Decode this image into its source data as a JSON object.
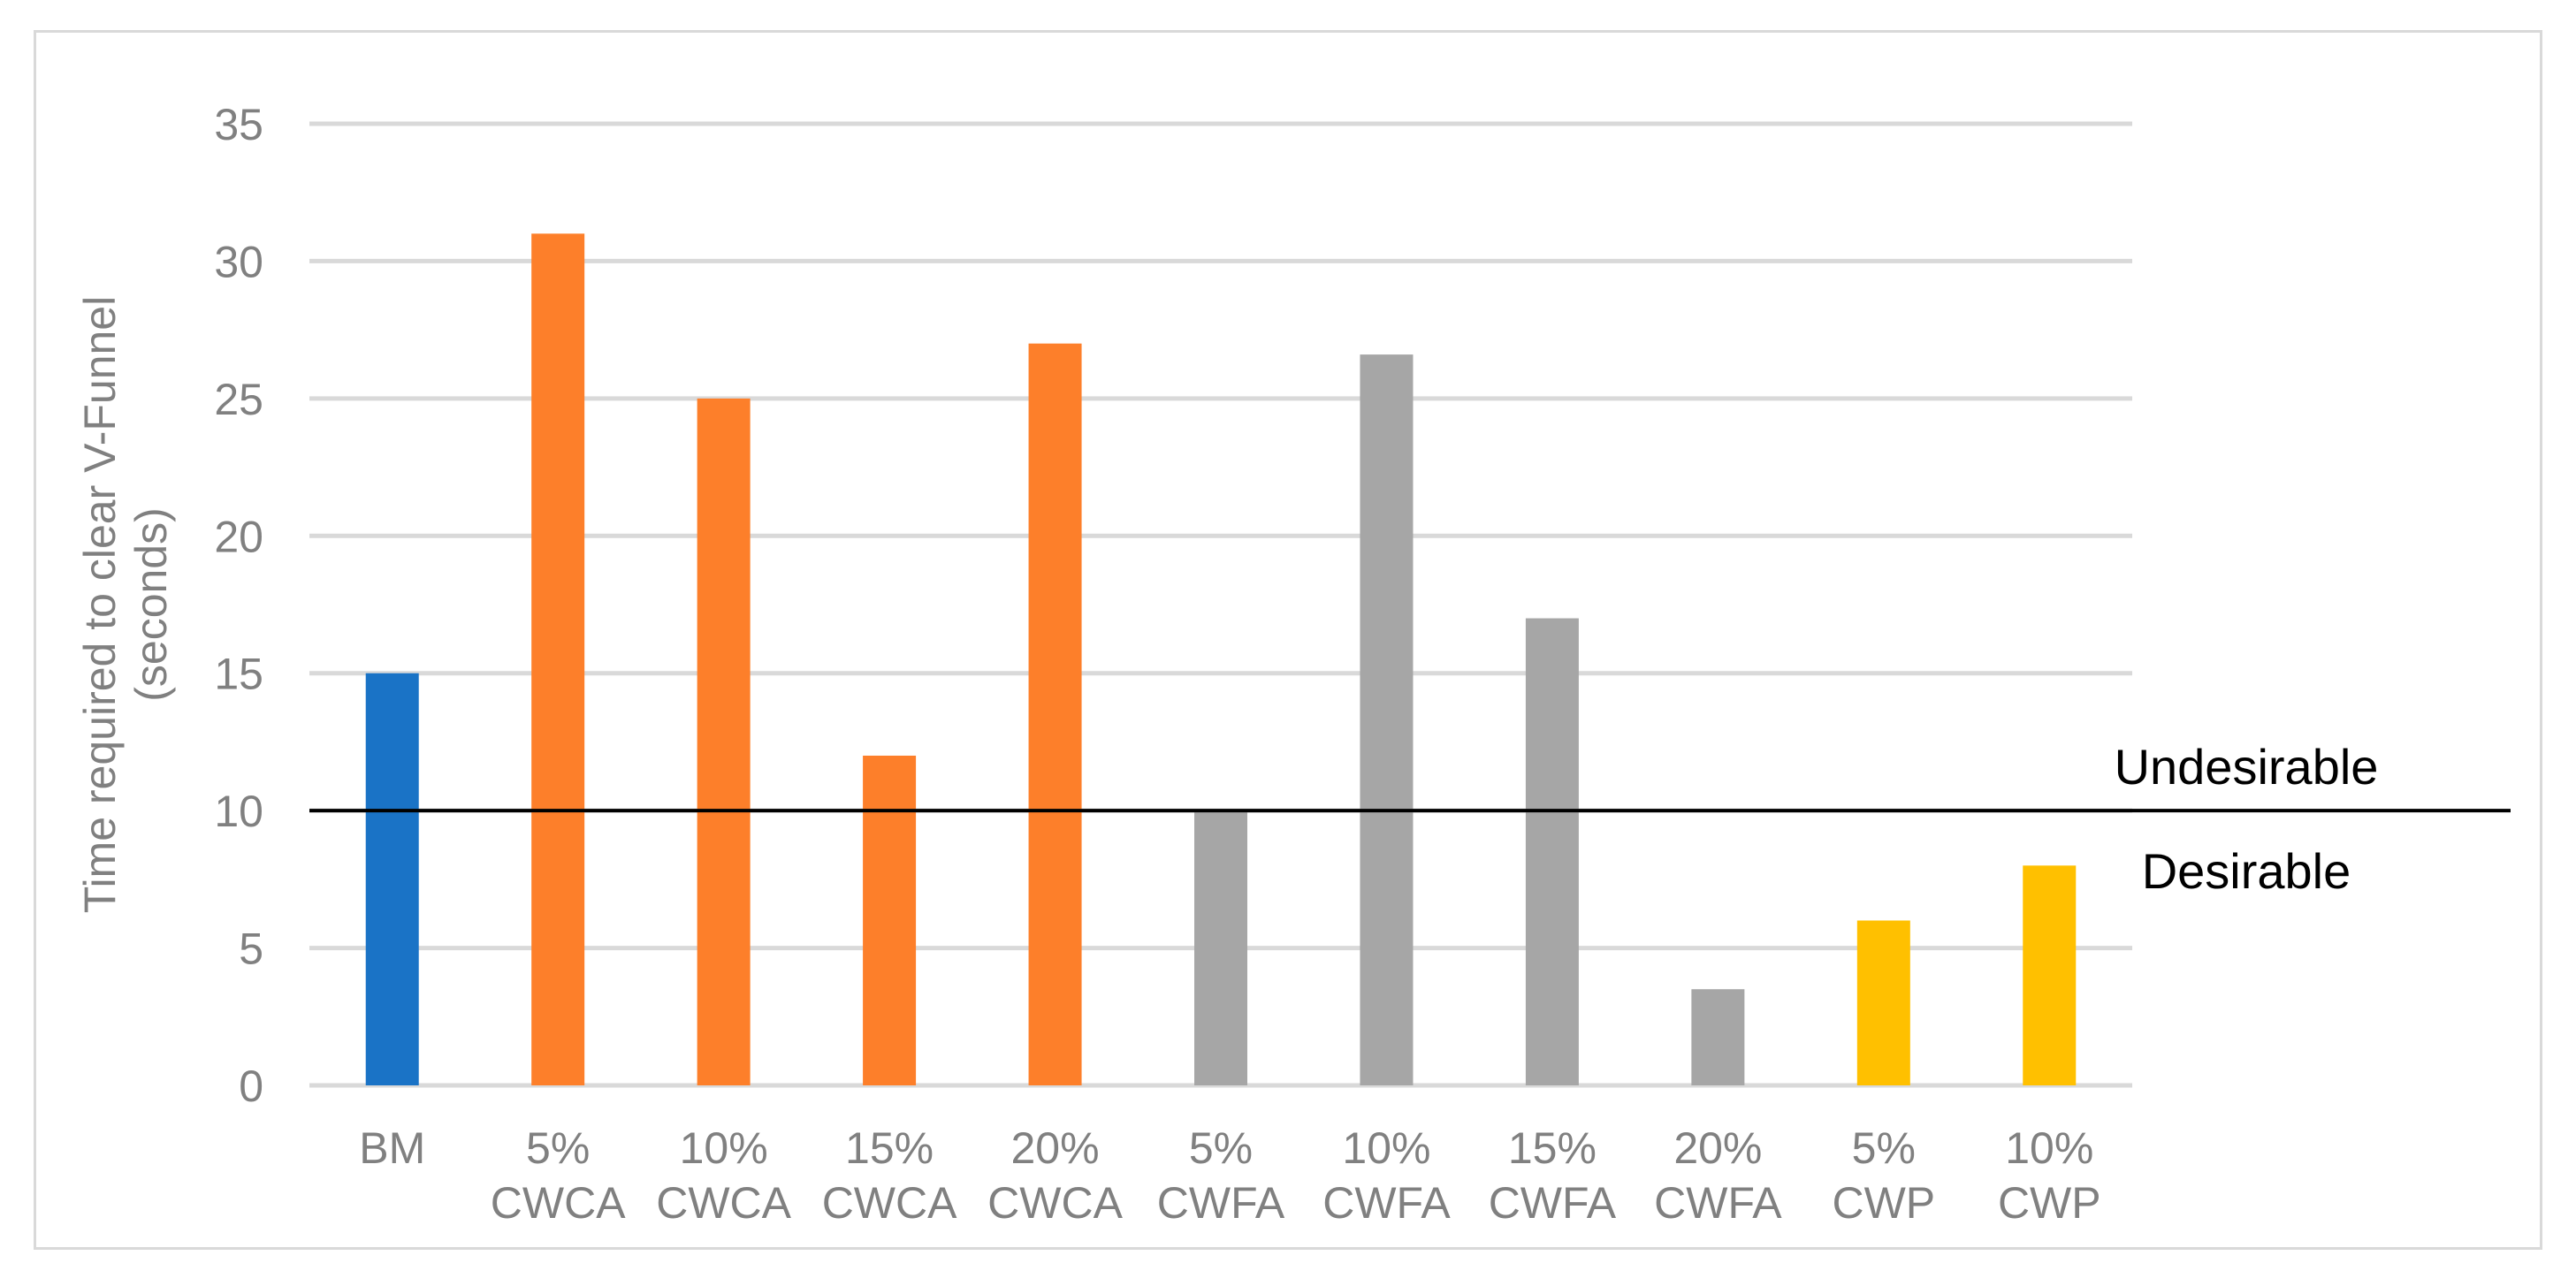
{
  "chart_data": {
    "type": "bar",
    "categories": [
      [
        "BM"
      ],
      [
        "5%",
        "CWCA"
      ],
      [
        "10%",
        "CWCA"
      ],
      [
        "15%",
        "CWCA"
      ],
      [
        "20%",
        "CWCA"
      ],
      [
        "5%",
        "CWFA"
      ],
      [
        "10%",
        "CWFA"
      ],
      [
        "15%",
        "CWFA"
      ],
      [
        "20%",
        "CWFA"
      ],
      [
        "5%",
        "CWP"
      ],
      [
        "10%",
        "CWP"
      ]
    ],
    "values": [
      15,
      31,
      25,
      12,
      27,
      10,
      26.6,
      17,
      3.5,
      6,
      8
    ],
    "bar_colors": [
      "#1a73c6",
      "#fd7f2a",
      "#fd7f2a",
      "#fd7f2a",
      "#fd7f2a",
      "#a6a6a6",
      "#a6a6a6",
      "#a6a6a6",
      "#a6a6a6",
      "#ffc000",
      "#ffc000"
    ],
    "ylabel_lines": [
      "Time required to clear V-Funnel",
      "(seconds)"
    ],
    "ylim": [
      0,
      35
    ],
    "yticks": [
      0,
      5,
      10,
      15,
      20,
      25,
      30,
      35
    ],
    "grid": true,
    "threshold": {
      "value": 10,
      "color": "#000000",
      "label_above": "Undesirable",
      "label_below": "Desirable"
    },
    "colors": {
      "gridline": "#d9d9d9",
      "tick_text": "#808080",
      "frame": "#d9d9d9"
    }
  }
}
